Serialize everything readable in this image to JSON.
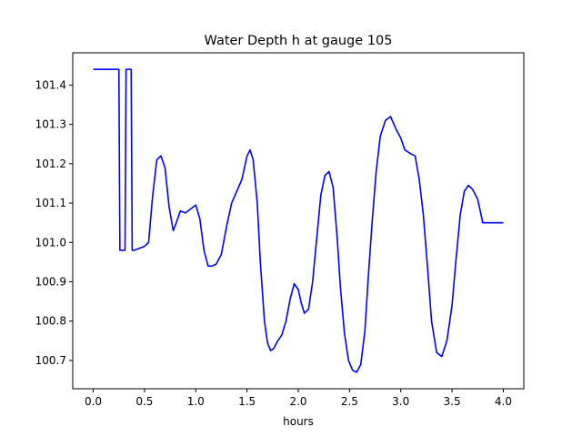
{
  "chart_data": {
    "type": "line",
    "title": "Water Depth h at gauge 105",
    "xlabel": "hours",
    "ylabel": "",
    "xlim": [
      -0.2,
      4.2
    ],
    "ylim": [
      100.628,
      101.482
    ],
    "xticks": [
      0.0,
      0.5,
      1.0,
      1.5,
      2.0,
      2.5,
      3.0,
      3.5,
      4.0
    ],
    "xtick_labels": [
      "0.0",
      "0.5",
      "1.0",
      "1.5",
      "2.0",
      "2.5",
      "3.0",
      "3.5",
      "4.0"
    ],
    "yticks": [
      100.7,
      100.8,
      100.9,
      101.0,
      101.1,
      101.2,
      101.3,
      101.4
    ],
    "ytick_labels": [
      "100.7",
      "100.8",
      "100.9",
      "101.0",
      "101.1",
      "101.2",
      "101.3",
      "101.4"
    ],
    "grid": false,
    "series": [
      {
        "color": "#0000ff",
        "x": [
          0.0,
          0.25,
          0.26,
          0.31,
          0.32,
          0.37,
          0.38,
          0.4,
          0.45,
          0.5,
          0.54,
          0.58,
          0.62,
          0.66,
          0.7,
          0.74,
          0.78,
          0.81,
          0.85,
          0.9,
          0.95,
          1.0,
          1.04,
          1.08,
          1.12,
          1.16,
          1.2,
          1.25,
          1.3,
          1.35,
          1.4,
          1.45,
          1.5,
          1.53,
          1.56,
          1.6,
          1.63,
          1.67,
          1.7,
          1.73,
          1.76,
          1.8,
          1.84,
          1.88,
          1.92,
          1.96,
          2.0,
          2.03,
          2.06,
          2.1,
          2.14,
          2.18,
          2.22,
          2.26,
          2.3,
          2.34,
          2.38,
          2.41,
          2.45,
          2.49,
          2.53,
          2.57,
          2.61,
          2.65,
          2.68,
          2.72,
          2.76,
          2.8,
          2.85,
          2.9,
          2.95,
          3.0,
          3.04,
          3.07,
          3.1,
          3.14,
          3.18,
          3.22,
          3.26,
          3.3,
          3.35,
          3.4,
          3.45,
          3.5,
          3.54,
          3.58,
          3.62,
          3.66,
          3.7,
          3.75,
          3.8,
          3.85,
          3.88,
          3.92,
          3.96,
          4.0
        ],
        "y": [
          101.44,
          101.44,
          100.98,
          100.98,
          101.44,
          101.44,
          100.98,
          100.98,
          100.985,
          100.99,
          101.0,
          101.12,
          101.21,
          101.22,
          101.19,
          101.09,
          101.03,
          101.05,
          101.08,
          101.075,
          101.085,
          101.095,
          101.06,
          100.98,
          100.94,
          100.94,
          100.945,
          100.97,
          101.04,
          101.1,
          101.13,
          101.16,
          101.22,
          101.235,
          101.21,
          101.1,
          100.95,
          100.8,
          100.745,
          100.725,
          100.73,
          100.75,
          100.765,
          100.8,
          100.855,
          100.895,
          100.88,
          100.845,
          100.82,
          100.83,
          100.9,
          101.01,
          101.12,
          101.17,
          101.18,
          101.14,
          101.01,
          100.89,
          100.77,
          100.7,
          100.675,
          100.67,
          100.69,
          100.775,
          100.9,
          101.05,
          101.18,
          101.27,
          101.31,
          101.32,
          101.29,
          101.265,
          101.235,
          101.23,
          101.225,
          101.22,
          101.16,
          101.07,
          100.94,
          100.8,
          100.72,
          100.71,
          100.75,
          100.84,
          100.96,
          101.07,
          101.13,
          101.145,
          101.135,
          101.11,
          101.05,
          101.05,
          101.05,
          101.05,
          101.05,
          101.05
        ]
      }
    ]
  }
}
